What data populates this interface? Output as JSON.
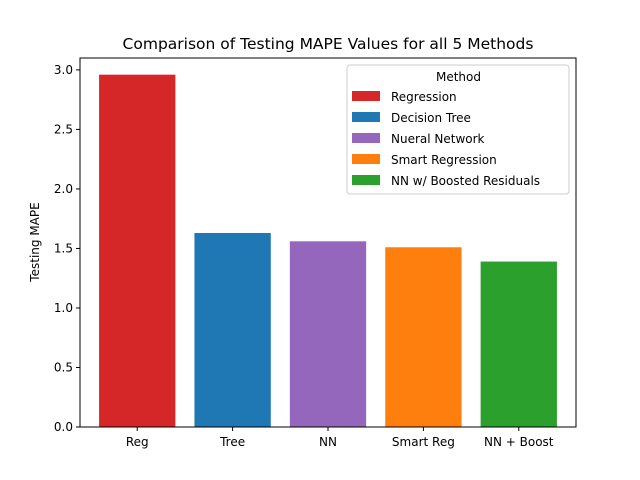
{
  "chart_data": {
    "type": "bar",
    "title": "Comparison of Testing MAPE Values for all 5 Methods",
    "xlabel": "",
    "ylabel": "Testing MAPE",
    "categories": [
      "Reg",
      "Tree",
      "NN",
      "Smart Reg",
      "NN + Boost"
    ],
    "values": [
      2.96,
      1.63,
      1.56,
      1.51,
      1.39
    ],
    "colors": [
      "#d62728",
      "#1f77b4",
      "#9467bd",
      "#ff7f0e",
      "#2ca02c"
    ],
    "ylim": [
      0,
      3.1
    ],
    "yticks": [
      "0.0",
      "0.5",
      "1.0",
      "1.5",
      "2.0",
      "2.5",
      "3.0"
    ],
    "grid": false,
    "legend": {
      "title": "Method",
      "position": "top-right",
      "entries": [
        "Regression",
        "Decision Tree",
        "Nueral Network",
        "Smart Regression",
        "NN w/ Boosted Residuals"
      ]
    }
  }
}
